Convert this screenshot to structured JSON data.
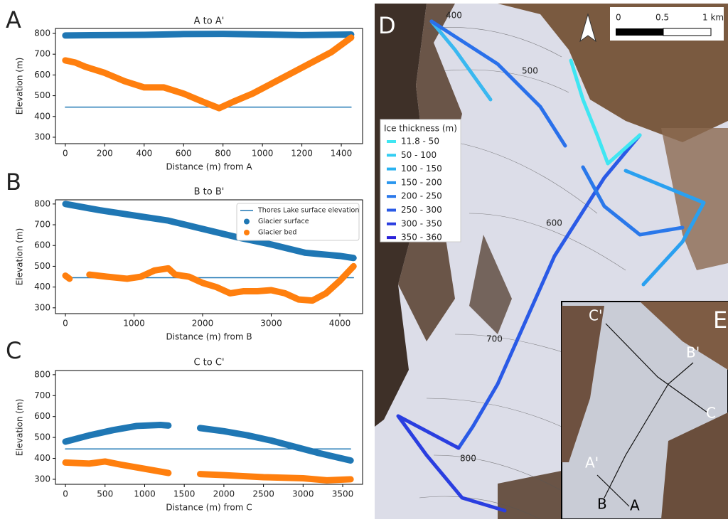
{
  "chart_data": [
    {
      "type": "scatter",
      "panel": "A",
      "title": "A to A'",
      "xlabel": "Distance (m) from A",
      "ylabel": "Elevation (m)",
      "xlim": [
        -50,
        1508
      ],
      "ylim": [
        269,
        824
      ],
      "xticks": [
        0,
        200,
        400,
        600,
        800,
        1000,
        1200,
        1400
      ],
      "yticks": [
        300,
        400,
        500,
        600,
        700,
        800
      ],
      "series": [
        {
          "kind": "line",
          "color": "#1f77b4",
          "x": [
            0,
            1450
          ],
          "values": [
            445,
            445
          ]
        },
        {
          "kind": "dots",
          "color": "#1f77b4",
          "x": [
            0,
            200,
            400,
            600,
            800,
            1000,
            1200,
            1450
          ],
          "values": [
            790,
            792,
            793,
            797,
            798,
            795,
            792,
            795
          ]
        },
        {
          "kind": "dots",
          "color": "#ff7f0e",
          "x": [
            0,
            50,
            100,
            200,
            300,
            400,
            500,
            600,
            700,
            780,
            850,
            950,
            1050,
            1150,
            1250,
            1350,
            1450
          ],
          "values": [
            670,
            660,
            640,
            610,
            570,
            540,
            540,
            510,
            470,
            440,
            470,
            510,
            560,
            610,
            660,
            710,
            780
          ]
        }
      ]
    },
    {
      "type": "scatter",
      "panel": "B",
      "title": "B to B'",
      "xlabel": "Distance (m) from B",
      "ylabel": "Elevation (m)",
      "xlim": [
        -145,
        4332
      ],
      "ylim": [
        272,
        820
      ],
      "xticks": [
        0,
        1000,
        2000,
        3000,
        4000
      ],
      "yticks": [
        300,
        400,
        500,
        600,
        700,
        800
      ],
      "legend": "upper right",
      "series": [
        {
          "name": "Thores Lake surface elevation",
          "kind": "line",
          "color": "#1f77b4",
          "x": [
            0,
            4200
          ],
          "values": [
            445,
            445
          ]
        },
        {
          "name": "Glacier surface",
          "kind": "dots",
          "color": "#1f77b4",
          "x": [
            0,
            500,
            1000,
            1500,
            2000,
            2500,
            3000,
            3500,
            4000,
            4200
          ],
          "values": [
            800,
            770,
            745,
            720,
            680,
            640,
            605,
            565,
            550,
            540
          ]
        },
        {
          "name": "Glacier bed",
          "kind": "dots",
          "color": "#ff7f0e",
          "x": [
            0,
            60,
            200,
            350,
            600,
            900,
            1100,
            1300,
            1500,
            1600,
            1800,
            2000,
            2200,
            2400,
            2600,
            2800,
            3000,
            3200,
            3400,
            3600,
            3800,
            4000,
            4200
          ],
          "values": [
            455,
            440,
            null,
            460,
            450,
            440,
            450,
            480,
            490,
            460,
            450,
            420,
            400,
            370,
            380,
            380,
            385,
            370,
            340,
            335,
            370,
            430,
            500
          ]
        }
      ]
    },
    {
      "type": "scatter",
      "panel": "C",
      "title": "C to C'",
      "xlabel": "Distance (m) from C",
      "ylabel": "Elevation (m)",
      "xlim": [
        -126,
        3751
      ],
      "ylim": [
        276,
        820
      ],
      "xticks": [
        0,
        500,
        1000,
        1500,
        2000,
        2500,
        3000,
        3500
      ],
      "yticks": [
        300,
        400,
        500,
        600,
        700,
        800
      ],
      "series": [
        {
          "kind": "line",
          "color": "#1f77b4",
          "x": [
            0,
            3600
          ],
          "values": [
            445,
            445
          ]
        },
        {
          "kind": "dots",
          "color": "#1f77b4",
          "x": [
            0,
            300,
            600,
            900,
            1200,
            1300,
            1500,
            1700,
            2000,
            2300,
            2600,
            2900,
            3200,
            3600
          ],
          "values": [
            480,
            510,
            535,
            555,
            560,
            557,
            null,
            545,
            530,
            510,
            485,
            455,
            425,
            390
          ]
        },
        {
          "kind": "dots",
          "color": "#ff7f0e",
          "x": [
            0,
            300,
            500,
            700,
            1000,
            1300,
            1500,
            1700,
            2000,
            2500,
            3000,
            3300,
            3600
          ],
          "values": [
            380,
            375,
            385,
            370,
            350,
            330,
            null,
            325,
            320,
            310,
            305,
            295,
            300
          ]
        }
      ]
    }
  ],
  "map": {
    "panel": "D",
    "inset_panel": "E",
    "contour_labels": [
      "400",
      "500",
      "600",
      "700",
      "800"
    ],
    "scale": [
      "0",
      "0.5",
      "1 km"
    ],
    "legend": {
      "title": "Ice thickness (m)",
      "entries": [
        {
          "label": "11.8 - 50",
          "color": "#3fe6f2"
        },
        {
          "label": "50 - 100",
          "color": "#32cdf2"
        },
        {
          "label": "100 - 150",
          "color": "#2ab2f0"
        },
        {
          "label": "150 - 200",
          "color": "#2896ee"
        },
        {
          "label": "200 - 250",
          "color": "#2a78ea"
        },
        {
          "label": "250 - 300",
          "color": "#2a5ae6"
        },
        {
          "label": "300 - 350",
          "color": "#2a3ee0"
        },
        {
          "label": "350 - 360",
          "color": "#2a22d8"
        }
      ]
    },
    "inset_labels": [
      "C'",
      "B'",
      "C",
      "A'",
      "B",
      "A"
    ]
  }
}
